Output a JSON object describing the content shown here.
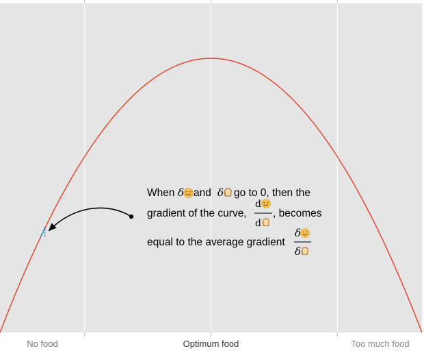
{
  "chart_data": {
    "type": "line",
    "title": "",
    "xlabel": "",
    "ylabel": "",
    "grid": true,
    "legend": "none",
    "x_ticks": [
      {
        "label": "No food",
        "value": -1.0,
        "color": "#777777"
      },
      {
        "label": "Optimum food",
        "value": 0.0,
        "color": "#333333"
      },
      {
        "label": "Too much food",
        "value": 1.0,
        "color": "#888888"
      }
    ],
    "xlim": [
      -1.67,
      1.67
    ],
    "ylim": [
      0,
      1.2
    ],
    "series": [
      {
        "color": "#E24A33",
        "shape": "parabola",
        "x": [
          -1.67,
          -1.2,
          -0.8,
          -0.4,
          0.0,
          0.4,
          0.8,
          1.2,
          1.67
        ],
        "y": [
          0.0,
          0.48,
          0.77,
          0.94,
          1.0,
          0.94,
          0.77,
          0.48,
          0.0
        ]
      }
    ],
    "highlight": {
      "x": -1.33,
      "y": 0.37,
      "color": "#5BA3C9"
    },
    "annotation": {
      "line1_a": "When ",
      "line1_b": " and ",
      "line1_c": " go to 0, then the",
      "line2_a": "gradient of the curve, ",
      "line2_b": ", becomes",
      "line3_a": "equal to the average gradient ",
      "delta_symbol": "δ",
      "d_symbol": "d",
      "happy_icon": "smiley-face-icon",
      "food_icon": "bread-icon"
    },
    "colors": {
      "background": "#E5E5E5",
      "grid": "#FFFFFF",
      "curve": "#E24A33",
      "arrow": "#000000",
      "highlight": "#5BA3C9"
    }
  }
}
